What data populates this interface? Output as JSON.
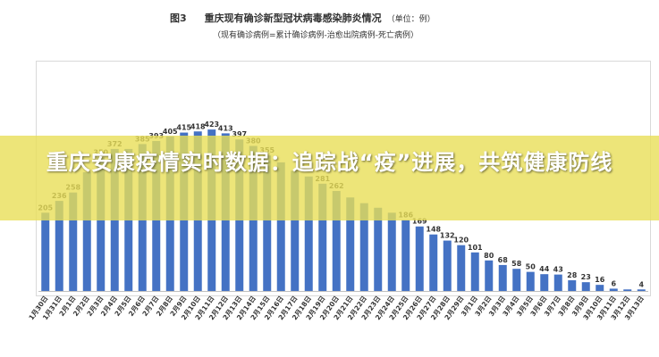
{
  "header": {
    "figure_label": "图3",
    "title": "重庆现有确诊新型冠状病毒感染肺炎情况",
    "unit": "（单位：例）",
    "subtitle": "（现有确诊病例=累计确诊病例-治愈出院病例-死亡病例）"
  },
  "banner": {
    "text": "重庆安康疫情实时数据：追踪战“疫”进展，共筑健康防线"
  },
  "colors": {
    "bar": "#4472c4",
    "banner": "#e8de58",
    "banner_text": "#ffffff"
  },
  "chart_data": {
    "type": "bar",
    "title": "重庆现有确诊新型冠状病毒感染肺炎情况",
    "categories": [
      "1月30日",
      "1月31日",
      "2月1日",
      "2月2日",
      "2月3日",
      "2月4日",
      "2月5日",
      "2月6日",
      "2月7日",
      "2月8日",
      "2月9日",
      "2月10日",
      "2月11日",
      "2月12日",
      "2月13日",
      "2月14日",
      "2月15日",
      "2月16日",
      "2月17日",
      "2月18日",
      "2月19日",
      "2月20日",
      "2月21日",
      "2月22日",
      "2月23日",
      "2月24日",
      "2月25日",
      "2月26日",
      "2月27日",
      "2月28日",
      "2月29日",
      "3月1日",
      "3月2日",
      "3月3日",
      "3月4日",
      "3月5日",
      "3月6日",
      "3月7日",
      "3月8日",
      "3月9日",
      "3月10日",
      "3月11日",
      "3月12日",
      "3月13日"
    ],
    "values": [
      205,
      236,
      258,
      311,
      350,
      372,
      372,
      385,
      393,
      405,
      415,
      418,
      423,
      413,
      397,
      380,
      355,
      337,
      315,
      300,
      281,
      262,
      245,
      230,
      218,
      205,
      186,
      169,
      148,
      132,
      120,
      101,
      80,
      68,
      58,
      50,
      44,
      43,
      28,
      23,
      16,
      6,
      4,
      4
    ],
    "value_labels": [
      "205",
      "236",
      "258",
      "",
      "350",
      "372",
      "",
      "385",
      "393",
      "405",
      "415",
      "418",
      "423",
      "413",
      "397",
      "380",
      "355",
      "",
      "",
      "",
      "281",
      "262",
      "",
      "",
      "",
      "",
      "186",
      "169",
      "148",
      "132",
      "120",
      "101",
      "80",
      "68",
      "58",
      "50",
      "44",
      "43",
      "28",
      "23",
      "16",
      "6",
      "",
      "4"
    ],
    "ylim": [
      0,
      440
    ],
    "grid": false,
    "legend": "none"
  }
}
